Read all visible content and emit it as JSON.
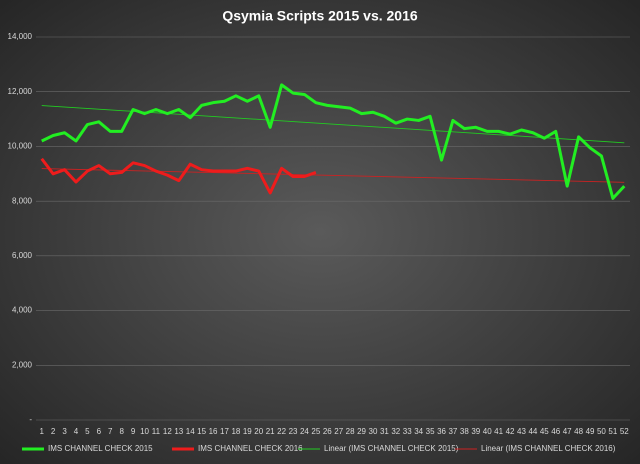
{
  "chart_data": {
    "type": "line",
    "title": "Qsymia Scripts 2015 vs. 2016",
    "categories": [
      1,
      2,
      3,
      4,
      5,
      6,
      7,
      8,
      9,
      10,
      11,
      12,
      13,
      14,
      15,
      16,
      17,
      18,
      19,
      20,
      21,
      22,
      23,
      24,
      25,
      26,
      27,
      28,
      29,
      30,
      31,
      32,
      33,
      34,
      35,
      36,
      37,
      38,
      39,
      40,
      41,
      42,
      43,
      44,
      45,
      46,
      47,
      48,
      49,
      50,
      51,
      52
    ],
    "series": [
      {
        "name": "IMS CHANNEL CHECK 2015",
        "color": "#22ee22",
        "values": [
          10200,
          10400,
          10500,
          10200,
          10800,
          10900,
          10550,
          10550,
          11350,
          11200,
          11350,
          11200,
          11350,
          11050,
          11500,
          11600,
          11650,
          11850,
          11650,
          11850,
          10700,
          12250,
          11950,
          11900,
          11600,
          11500,
          11450,
          11400,
          11200,
          11250,
          11100,
          10850,
          11000,
          10950,
          11100,
          9500,
          10950,
          10650,
          10700,
          10550,
          10550,
          10450,
          10600,
          10500,
          10300,
          10550,
          8550,
          10350,
          9950,
          9650,
          8100,
          8550
        ]
      },
      {
        "name": "IMS CHANNEL CHECK 2016",
        "color": "#ee1c1c",
        "values": [
          9550,
          9000,
          9150,
          8700,
          9100,
          9300,
          9000,
          9050,
          9400,
          9300,
          9100,
          8950,
          8750,
          9350,
          9150,
          9100,
          9100,
          9100,
          9200,
          9100,
          8300,
          9200,
          8900,
          8900,
          9050,
          null,
          null,
          null,
          null,
          null,
          null,
          null,
          null,
          null,
          null,
          null,
          null,
          null,
          null,
          null,
          null,
          null,
          null,
          null,
          null,
          null,
          null,
          null,
          null,
          null,
          null,
          null
        ]
      },
      {
        "name": "Linear (IMS CHANNEL CHECK 2015)",
        "color": "#22cc22",
        "trend_of": 0
      },
      {
        "name": "Linear (IMS CHANNEL CHECK 2016)",
        "color": "#cc2222",
        "trend_of": 1
      }
    ],
    "ylim": [
      0,
      14000
    ],
    "yticks": [
      {
        "value": 0,
        "label": "-"
      },
      {
        "value": 2000,
        "label": "2,000"
      },
      {
        "value": 4000,
        "label": "4,000"
      },
      {
        "value": 6000,
        "label": "6,000"
      },
      {
        "value": 8000,
        "label": "8,000"
      },
      {
        "value": 10000,
        "label": "10,000"
      },
      {
        "value": 12000,
        "label": "12,000"
      },
      {
        "value": 14000,
        "label": "14,000"
      }
    ],
    "grid": true,
    "legend": "bottom"
  }
}
